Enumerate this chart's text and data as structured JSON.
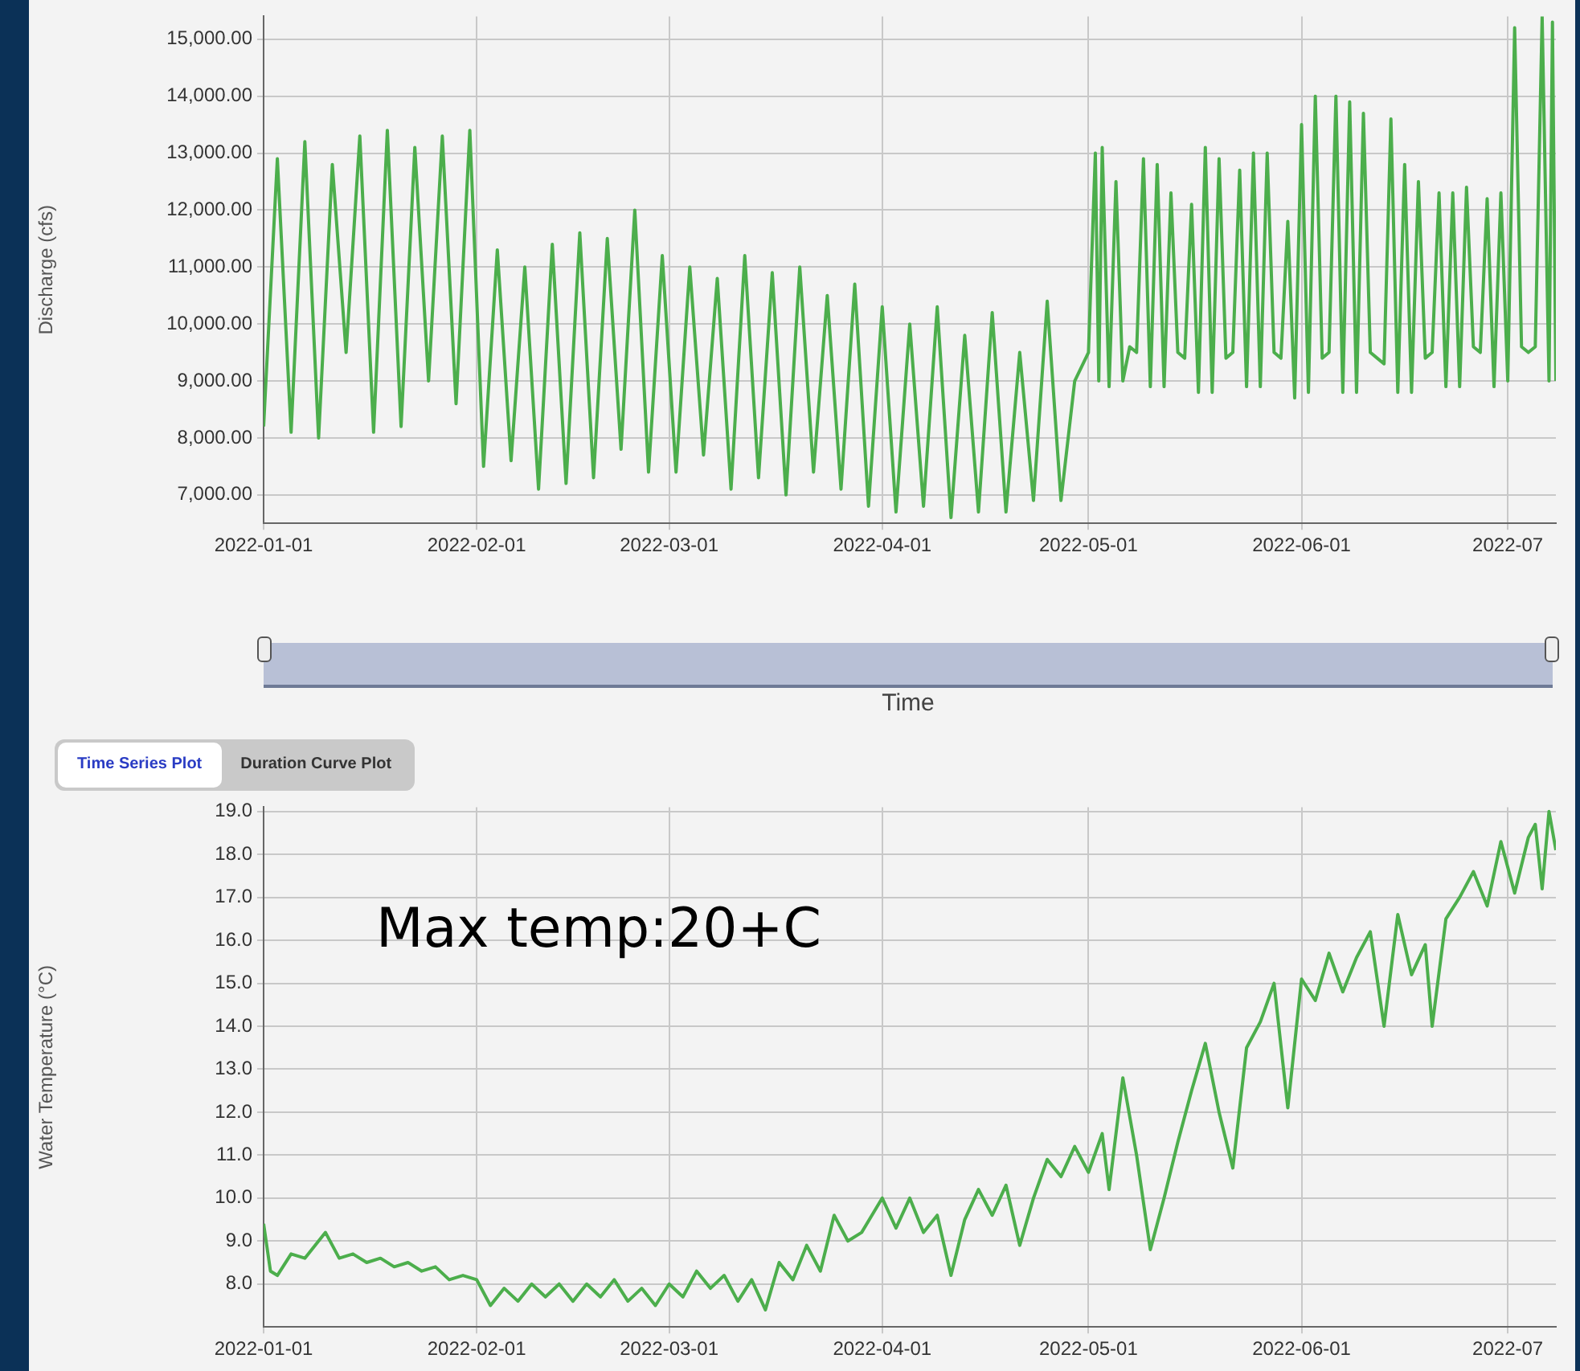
{
  "chart_data": [
    {
      "type": "line",
      "ylabel": "Discharge (cfs)",
      "xlabel": "Time",
      "grid": true,
      "legend": false,
      "marker": "none",
      "annotations": [
        "Time Series Plot",
        "Duration Curve Plot"
      ],
      "xlim": [
        "2022-01-01",
        "2022-07-08"
      ],
      "xticks": [
        "2022-01-01",
        "2022-02-01",
        "2022-03-01",
        "2022-04-01",
        "2022-05-01",
        "2022-06-01",
        {
          "value": "2022-07-01",
          "label": "2022-07"
        }
      ],
      "ylim": [
        6500,
        15400
      ],
      "yticks": [
        {
          "value": 7000,
          "label": "7,000.00"
        },
        {
          "value": 8000,
          "label": "8,000.00"
        },
        {
          "value": 9000,
          "label": "9,000.00"
        },
        {
          "value": 10000,
          "label": "10,000.00"
        },
        {
          "value": 11000,
          "label": "11,000.00"
        },
        {
          "value": 12000,
          "label": "12,000.00"
        },
        {
          "value": 13000,
          "label": "13,000.00"
        },
        {
          "value": 14000,
          "label": "14,000.00"
        },
        {
          "value": 15000,
          "label": "15,000.00"
        }
      ],
      "series": [
        {
          "color": "#4cae4c",
          "x": [
            "2022-01-01",
            "2022-01-03",
            "2022-01-05",
            "2022-01-07",
            "2022-01-09",
            "2022-01-11",
            "2022-01-13",
            "2022-01-15",
            "2022-01-17",
            "2022-01-19",
            "2022-01-21",
            "2022-01-23",
            "2022-01-25",
            "2022-01-27",
            "2022-01-29",
            "2022-01-31",
            "2022-02-02",
            "2022-02-04",
            "2022-02-06",
            "2022-02-08",
            "2022-02-10",
            "2022-02-12",
            "2022-02-14",
            "2022-02-16",
            "2022-02-18",
            "2022-02-20",
            "2022-02-22",
            "2022-02-24",
            "2022-02-26",
            "2022-02-28",
            "2022-03-02",
            "2022-03-04",
            "2022-03-06",
            "2022-03-08",
            "2022-03-10",
            "2022-03-12",
            "2022-03-14",
            "2022-03-16",
            "2022-03-18",
            "2022-03-20",
            "2022-03-22",
            "2022-03-24",
            "2022-03-26",
            "2022-03-28",
            "2022-03-30",
            "2022-04-01",
            "2022-04-03",
            "2022-04-05",
            "2022-04-07",
            "2022-04-09",
            "2022-04-11",
            "2022-04-13",
            "2022-04-15",
            "2022-04-17",
            "2022-04-19",
            "2022-04-21",
            "2022-04-23",
            "2022-04-25",
            "2022-04-27",
            "2022-04-29",
            "2022-05-01",
            "2022-05-02",
            "2022-05-02T12:00",
            "2022-05-03",
            "2022-05-04",
            "2022-05-05",
            "2022-05-06",
            "2022-05-07",
            "2022-05-08",
            "2022-05-09",
            "2022-05-10",
            "2022-05-11",
            "2022-05-12",
            "2022-05-13",
            "2022-05-14",
            "2022-05-15",
            "2022-05-16",
            "2022-05-17",
            "2022-05-18",
            "2022-05-19",
            "2022-05-20",
            "2022-05-21",
            "2022-05-22",
            "2022-05-23",
            "2022-05-24",
            "2022-05-25",
            "2022-05-26",
            "2022-05-27",
            "2022-05-28",
            "2022-05-29",
            "2022-05-30",
            "2022-05-31",
            "2022-06-01",
            "2022-06-02",
            "2022-06-03",
            "2022-06-04",
            "2022-06-05",
            "2022-06-06",
            "2022-06-07",
            "2022-06-08",
            "2022-06-09",
            "2022-06-10",
            "2022-06-11",
            "2022-06-12",
            "2022-06-13",
            "2022-06-14",
            "2022-06-15",
            "2022-06-16",
            "2022-06-17",
            "2022-06-18",
            "2022-06-19",
            "2022-06-20",
            "2022-06-21",
            "2022-06-22",
            "2022-06-23",
            "2022-06-24",
            "2022-06-25",
            "2022-06-26",
            "2022-06-27",
            "2022-06-28",
            "2022-06-29",
            "2022-06-30",
            "2022-07-01",
            "2022-07-02",
            "2022-07-03",
            "2022-07-04",
            "2022-07-05",
            "2022-07-06",
            "2022-07-07",
            "2022-07-07T12:00",
            "2022-07-08"
          ],
          "values": [
            8200,
            12900,
            8100,
            13200,
            8000,
            12800,
            9500,
            13300,
            8100,
            13400,
            8200,
            13100,
            9000,
            13300,
            8600,
            13400,
            7500,
            11300,
            7600,
            11000,
            7100,
            11400,
            7200,
            11600,
            7300,
            11500,
            7800,
            12000,
            7400,
            11200,
            7400,
            11000,
            7700,
            10800,
            7100,
            11200,
            7300,
            10900,
            7000,
            11000,
            7400,
            10500,
            7100,
            10700,
            6800,
            10300,
            6700,
            10000,
            6800,
            10300,
            6600,
            9800,
            6700,
            10200,
            6700,
            9500,
            6900,
            10400,
            6900,
            9000,
            9500,
            13000,
            9000,
            13100,
            8900,
            12500,
            9000,
            9600,
            9500,
            12900,
            8900,
            12800,
            8900,
            12300,
            9500,
            9400,
            12100,
            8800,
            13100,
            8800,
            12900,
            9400,
            9500,
            12700,
            8900,
            13000,
            8900,
            13000,
            9500,
            9400,
            11800,
            8700,
            13500,
            8800,
            14000,
            9400,
            9500,
            14000,
            8800,
            13900,
            8800,
            13700,
            9500,
            9400,
            9300,
            13600,
            8800,
            12800,
            8800,
            12500,
            9400,
            9500,
            12300,
            8900,
            12300,
            8900,
            12400,
            9600,
            9500,
            12200,
            8900,
            12300,
            9000,
            15200,
            9600,
            9500,
            9600,
            15400,
            9000,
            15300,
            9000
          ]
        }
      ]
    },
    {
      "type": "line",
      "ylabel": "Water Temperature (°C)",
      "grid": true,
      "legend": false,
      "marker": "none",
      "annotations": [
        "Max temp:20+C"
      ],
      "xlim": [
        "2022-01-01",
        "2022-07-08"
      ],
      "xticks": [
        "2022-01-01",
        "2022-02-01",
        "2022-03-01",
        "2022-04-01",
        "2022-05-01",
        "2022-06-01",
        {
          "value": "2022-07-01",
          "label": "2022-07"
        }
      ],
      "ylim": [
        7.0,
        19.1
      ],
      "yticks": [
        {
          "value": 8,
          "label": "8.0"
        },
        {
          "value": 9,
          "label": "9.0"
        },
        {
          "value": 10,
          "label": "10.0"
        },
        {
          "value": 11,
          "label": "11.0"
        },
        {
          "value": 12,
          "label": "12.0"
        },
        {
          "value": 13,
          "label": "13.0"
        },
        {
          "value": 14,
          "label": "14.0"
        },
        {
          "value": 15,
          "label": "15.0"
        },
        {
          "value": 16,
          "label": "16.0"
        },
        {
          "value": 17,
          "label": "17.0"
        },
        {
          "value": 18,
          "label": "18.0"
        },
        {
          "value": 19,
          "label": "19.0"
        }
      ],
      "series": [
        {
          "color": "#4cae4c",
          "x": [
            "2022-01-01",
            "2022-01-02",
            "2022-01-03",
            "2022-01-05",
            "2022-01-07",
            "2022-01-09",
            "2022-01-10",
            "2022-01-12",
            "2022-01-14",
            "2022-01-16",
            "2022-01-18",
            "2022-01-20",
            "2022-01-22",
            "2022-01-24",
            "2022-01-26",
            "2022-01-28",
            "2022-01-30",
            "2022-02-01",
            "2022-02-03",
            "2022-02-05",
            "2022-02-07",
            "2022-02-09",
            "2022-02-11",
            "2022-02-13",
            "2022-02-15",
            "2022-02-17",
            "2022-02-19",
            "2022-02-21",
            "2022-02-23",
            "2022-02-25",
            "2022-02-27",
            "2022-03-01",
            "2022-03-03",
            "2022-03-05",
            "2022-03-07",
            "2022-03-09",
            "2022-03-11",
            "2022-03-13",
            "2022-03-15",
            "2022-03-17",
            "2022-03-19",
            "2022-03-21",
            "2022-03-23",
            "2022-03-25",
            "2022-03-27",
            "2022-03-29",
            "2022-04-01",
            "2022-04-03",
            "2022-04-05",
            "2022-04-07",
            "2022-04-09",
            "2022-04-11",
            "2022-04-13",
            "2022-04-15",
            "2022-04-17",
            "2022-04-19",
            "2022-04-21",
            "2022-04-23",
            "2022-04-25",
            "2022-04-27",
            "2022-04-29",
            "2022-05-01",
            "2022-05-03",
            "2022-05-04",
            "2022-05-06",
            "2022-05-08",
            "2022-05-10",
            "2022-05-12",
            "2022-05-14",
            "2022-05-16",
            "2022-05-18",
            "2022-05-20",
            "2022-05-22",
            "2022-05-24",
            "2022-05-26",
            "2022-05-28",
            "2022-05-30",
            "2022-06-01",
            "2022-06-03",
            "2022-06-05",
            "2022-06-07",
            "2022-06-09",
            "2022-06-11",
            "2022-06-13",
            "2022-06-15",
            "2022-06-17",
            "2022-06-19",
            "2022-06-20",
            "2022-06-22",
            "2022-06-24",
            "2022-06-26",
            "2022-06-28",
            "2022-06-30",
            "2022-07-02",
            "2022-07-04",
            "2022-07-05",
            "2022-07-06",
            "2022-07-07",
            "2022-07-08"
          ],
          "values": [
            9.4,
            8.3,
            8.2,
            8.7,
            8.6,
            9.0,
            9.2,
            8.6,
            8.7,
            8.5,
            8.6,
            8.4,
            8.5,
            8.3,
            8.4,
            8.1,
            8.2,
            8.1,
            7.5,
            7.9,
            7.6,
            8.0,
            7.7,
            8.0,
            7.6,
            8.0,
            7.7,
            8.1,
            7.6,
            7.9,
            7.5,
            8.0,
            7.7,
            8.3,
            7.9,
            8.2,
            7.6,
            8.1,
            7.4,
            8.5,
            8.1,
            8.9,
            8.3,
            9.6,
            9.0,
            9.2,
            10.0,
            9.3,
            10.0,
            9.2,
            9.6,
            8.2,
            9.5,
            10.2,
            9.6,
            10.3,
            8.9,
            10.0,
            10.9,
            10.5,
            11.2,
            10.6,
            11.5,
            10.2,
            12.8,
            11.0,
            8.8,
            10.0,
            11.3,
            12.5,
            13.6,
            12.0,
            10.7,
            13.5,
            14.1,
            15.0,
            12.1,
            15.1,
            14.6,
            15.7,
            14.8,
            15.6,
            16.2,
            14.0,
            16.6,
            15.2,
            15.9,
            14.0,
            16.5,
            17.0,
            17.6,
            16.8,
            18.3,
            17.1,
            18.4,
            18.7,
            17.2,
            19.0,
            18.1
          ]
        }
      ]
    }
  ]
}
